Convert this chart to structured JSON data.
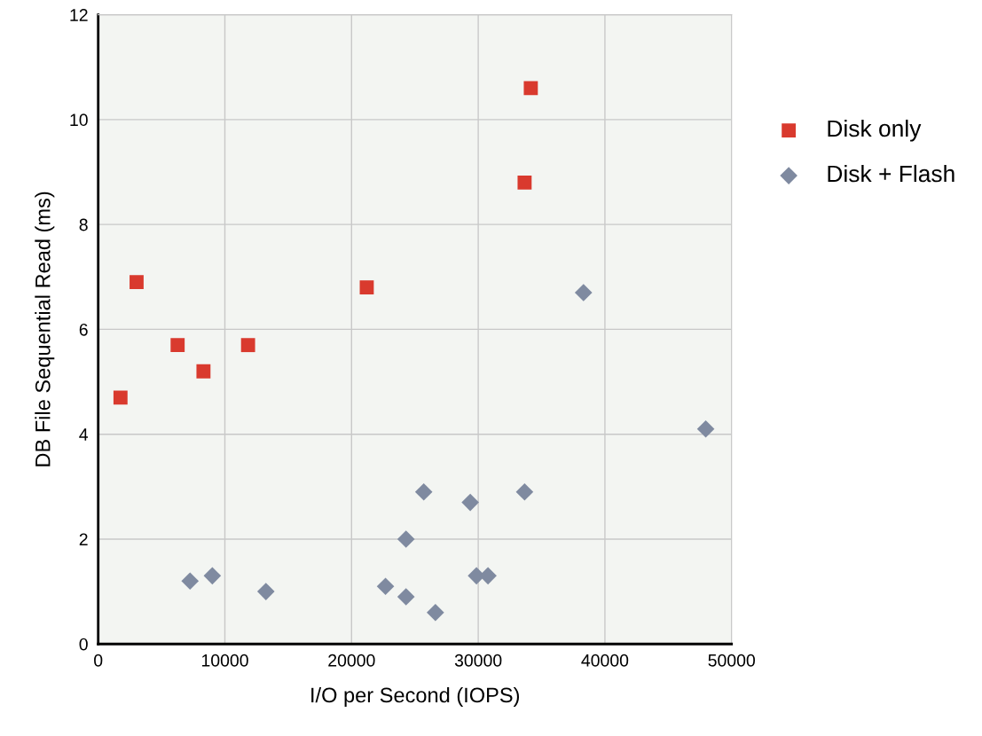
{
  "chart_data": {
    "type": "scatter",
    "xlabel": "I/O per Second (IOPS)",
    "ylabel": "DB File Sequential Read (ms)",
    "xlim": [
      0,
      50000
    ],
    "ylim": [
      0,
      12
    ],
    "xticks": [
      0,
      10000,
      20000,
      30000,
      40000,
      50000
    ],
    "yticks": [
      0,
      2,
      4,
      6,
      8,
      10,
      12
    ],
    "grid": true,
    "legend": "right",
    "series": [
      {
        "name": "Disk only",
        "color": "#d93a2e",
        "marker": "square",
        "x": [
          1760,
          3030,
          6270,
          8310,
          11830,
          21200,
          33660,
          34150
        ],
        "values": [
          4.7,
          6.9,
          5.7,
          5.2,
          5.7,
          6.8,
          8.8,
          10.6
        ]
      },
      {
        "name": "Disk + Flash",
        "color": "#7f8aa0",
        "marker": "diamond",
        "x": [
          7250,
          9010,
          13240,
          22680,
          24300,
          24300,
          25700,
          26620,
          29370,
          29860,
          30770,
          33660,
          38310,
          47960
        ],
        "values": [
          1.2,
          1.3,
          1.0,
          1.1,
          0.9,
          2.0,
          2.9,
          0.6,
          2.7,
          1.3,
          1.3,
          2.9,
          6.7,
          4.1
        ]
      }
    ]
  }
}
